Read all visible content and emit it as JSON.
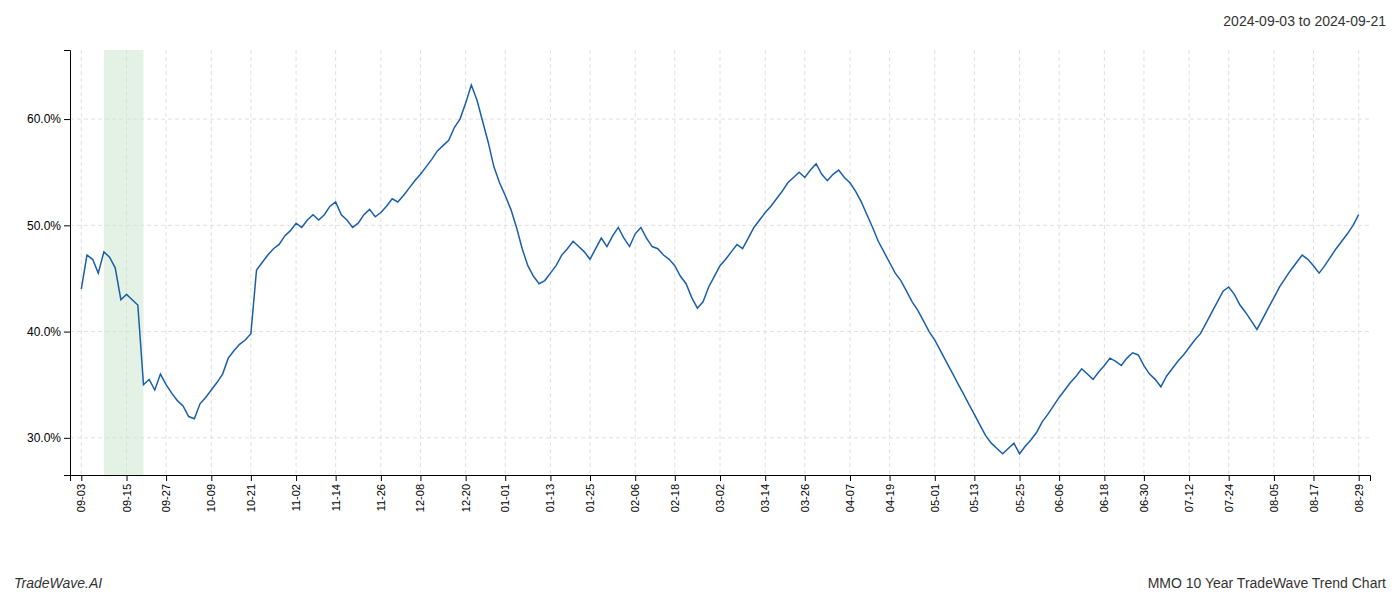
{
  "chart_data": {
    "type": "line",
    "title": "2024-09-03 to 2024-09-21",
    "annotations": [
      "TradeWave.AI",
      "MMO 10 Year TradeWave Trend Chart"
    ],
    "color": "#1a5fa8",
    "grid": true,
    "ylim": [
      0.265,
      0.665
    ],
    "yticks": [
      {
        "value": 0.3,
        "label": "30.0%"
      },
      {
        "value": 0.4,
        "label": "40.0%"
      },
      {
        "value": 0.5,
        "label": "50.0%"
      },
      {
        "value": 0.6,
        "label": "60.0%"
      }
    ],
    "highlight": {
      "start": 4,
      "end": 11,
      "color": "#c8e6c9"
    },
    "categories": [
      "09-03",
      null,
      null,
      null,
      null,
      null,
      null,
      null,
      "09-15",
      null,
      null,
      null,
      null,
      null,
      null,
      "09-27",
      null,
      null,
      null,
      null,
      null,
      null,
      null,
      "10-09",
      null,
      null,
      null,
      null,
      null,
      null,
      "10-21",
      null,
      null,
      null,
      null,
      null,
      null,
      null,
      "11-02",
      null,
      null,
      null,
      null,
      null,
      null,
      "11-14",
      null,
      null,
      null,
      null,
      null,
      null,
      null,
      "11-26",
      null,
      null,
      null,
      null,
      null,
      null,
      "12-08",
      null,
      null,
      null,
      null,
      null,
      null,
      null,
      "12-20",
      null,
      null,
      null,
      null,
      null,
      null,
      "01-01",
      null,
      null,
      null,
      null,
      null,
      null,
      null,
      "01-13",
      null,
      null,
      null,
      null,
      null,
      null,
      "01-25",
      null,
      null,
      null,
      null,
      null,
      null,
      null,
      "02-06",
      null,
      null,
      null,
      null,
      null,
      null,
      "02-18",
      null,
      null,
      null,
      null,
      null,
      null,
      null,
      "03-02",
      null,
      null,
      null,
      null,
      null,
      null,
      null,
      "03-14",
      null,
      null,
      null,
      null,
      null,
      null,
      "03-26",
      null,
      null,
      null,
      null,
      null,
      null,
      null,
      "04-07",
      null,
      null,
      null,
      null,
      null,
      null,
      "04-19",
      null,
      null,
      null,
      null,
      null,
      null,
      null,
      "05-01",
      null,
      null,
      null,
      null,
      null,
      null,
      "05-13",
      null,
      null,
      null,
      null,
      null,
      null,
      null,
      "05-25",
      null,
      null,
      null,
      null,
      null,
      null,
      "06-06",
      null,
      null,
      null,
      null,
      null,
      null,
      null,
      "06-18",
      null,
      null,
      null,
      null,
      null,
      null,
      "06-30",
      null,
      null,
      null,
      null,
      null,
      null,
      null,
      "07-12",
      null,
      null,
      null,
      null,
      null,
      null,
      "07-24",
      null,
      null,
      null,
      null,
      null,
      null,
      null,
      "08-05",
      null,
      null,
      null,
      null,
      null,
      null,
      "08-17",
      null,
      null,
      null,
      null,
      null,
      null,
      null,
      "08-29"
    ],
    "values": [
      0.44,
      0.472,
      0.468,
      0.455,
      0.475,
      0.47,
      0.46,
      0.43,
      0.435,
      0.43,
      0.425,
      0.35,
      0.355,
      0.345,
      0.36,
      0.35,
      0.342,
      0.335,
      0.33,
      0.32,
      0.318,
      0.332,
      0.338,
      0.345,
      0.352,
      0.36,
      0.375,
      0.382,
      0.388,
      0.392,
      0.398,
      0.458,
      0.465,
      0.472,
      0.478,
      0.482,
      0.49,
      0.495,
      0.502,
      0.498,
      0.505,
      0.51,
      0.505,
      0.51,
      0.518,
      0.522,
      0.51,
      0.505,
      0.498,
      0.502,
      0.51,
      0.515,
      0.508,
      0.512,
      0.518,
      0.525,
      0.522,
      0.528,
      0.535,
      0.542,
      0.548,
      0.555,
      0.562,
      0.57,
      0.575,
      0.58,
      0.592,
      0.6,
      0.615,
      0.632,
      0.618,
      0.598,
      0.578,
      0.555,
      0.54,
      0.528,
      0.515,
      0.498,
      0.478,
      0.462,
      0.452,
      0.445,
      0.448,
      0.455,
      0.462,
      0.472,
      0.478,
      0.485,
      0.48,
      0.475,
      0.468,
      0.478,
      0.488,
      0.48,
      0.49,
      0.498,
      0.488,
      0.48,
      0.492,
      0.498,
      0.488,
      0.48,
      0.478,
      0.472,
      0.468,
      0.462,
      0.452,
      0.445,
      0.432,
      0.422,
      0.428,
      0.442,
      0.452,
      0.462,
      0.468,
      0.475,
      0.482,
      0.478,
      0.488,
      0.498,
      0.505,
      0.512,
      0.518,
      0.525,
      0.532,
      0.54,
      0.545,
      0.55,
      0.545,
      0.552,
      0.558,
      0.548,
      0.542,
      0.548,
      0.552,
      0.545,
      0.54,
      0.532,
      0.522,
      0.51,
      0.498,
      0.485,
      0.475,
      0.465,
      0.455,
      0.448,
      0.438,
      0.428,
      0.42,
      0.41,
      0.4,
      0.392,
      0.382,
      0.372,
      0.362,
      0.352,
      0.342,
      0.332,
      0.322,
      0.312,
      0.302,
      0.295,
      0.29,
      0.285,
      0.29,
      0.295,
      0.285,
      0.292,
      0.298,
      0.305,
      0.315,
      0.322,
      0.33,
      0.338,
      0.345,
      0.352,
      0.358,
      0.365,
      0.36,
      0.355,
      0.362,
      0.368,
      0.375,
      0.372,
      0.368,
      0.375,
      0.38,
      0.378,
      0.368,
      0.36,
      0.355,
      0.348,
      0.358,
      0.365,
      0.372,
      0.378,
      0.385,
      0.392,
      0.398,
      0.408,
      0.418,
      0.428,
      0.438,
      0.442,
      0.435,
      0.425,
      0.418,
      0.41,
      0.402,
      0.412,
      0.422,
      0.432,
      0.442,
      0.45,
      0.458,
      0.465,
      0.472,
      0.468,
      0.462,
      0.455,
      0.462,
      0.47,
      0.478,
      0.485,
      0.492,
      0.5,
      0.51
    ]
  }
}
